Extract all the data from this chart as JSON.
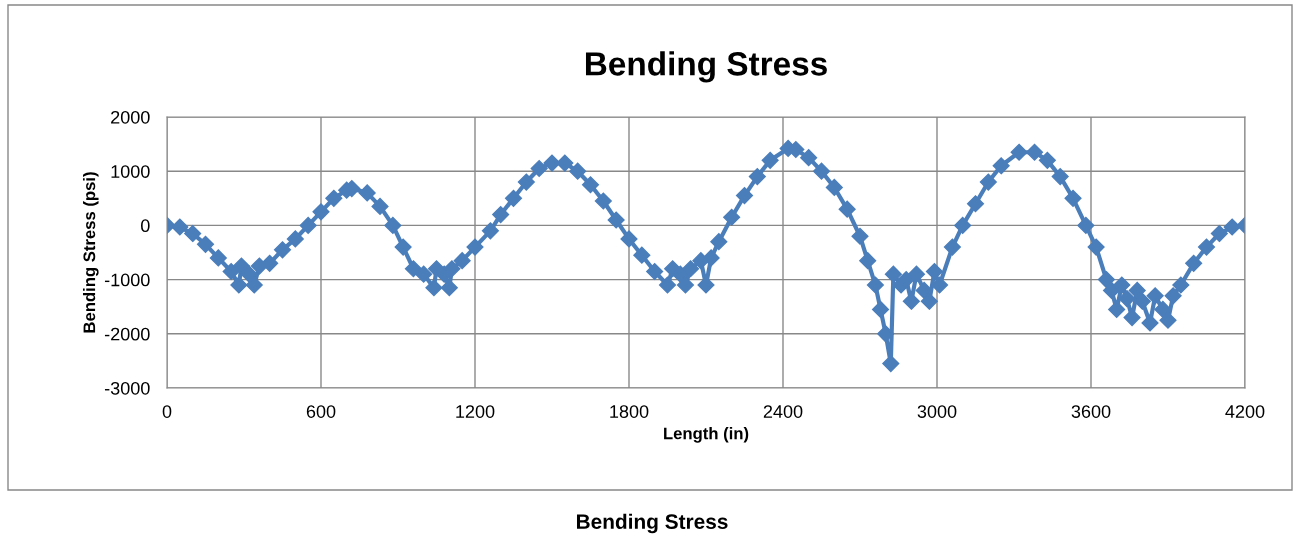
{
  "chart_data": {
    "type": "line",
    "title": "Bending Stress",
    "xlabel": "Length (in)",
    "ylabel": "Bending Stress (psi)",
    "annotations": [
      "Bending Stress"
    ],
    "x": [
      0,
      50,
      100,
      150,
      200,
      250,
      280,
      290,
      320,
      340,
      360,
      400,
      450,
      500,
      550,
      600,
      650,
      700,
      720,
      780,
      830,
      880,
      920,
      960,
      1000,
      1040,
      1050,
      1080,
      1100,
      1110,
      1150,
      1200,
      1260,
      1300,
      1350,
      1400,
      1450,
      1500,
      1550,
      1600,
      1650,
      1700,
      1750,
      1800,
      1850,
      1900,
      1950,
      1970,
      2000,
      2020,
      2040,
      2080,
      2100,
      2120,
      2150,
      2200,
      2250,
      2300,
      2350,
      2420,
      2450,
      2500,
      2550,
      2600,
      2650,
      2700,
      2730,
      2760,
      2780,
      2800,
      2820,
      2830,
      2860,
      2880,
      2900,
      2920,
      2950,
      2970,
      2990,
      3010,
      3060,
      3100,
      3150,
      3200,
      3250,
      3320,
      3380,
      3430,
      3480,
      3530,
      3580,
      3620,
      3660,
      3680,
      3700,
      3720,
      3740,
      3760,
      3780,
      3800,
      3830,
      3850,
      3880,
      3900,
      3920,
      3950,
      4000,
      4050,
      4100,
      4150,
      4200
    ],
    "series": [
      {
        "color": "#4a7ebb",
        "values": [
          0,
          -30,
          -150,
          -350,
          -600,
          -850,
          -1100,
          -750,
          -900,
          -1100,
          -750,
          -700,
          -450,
          -250,
          0,
          250,
          500,
          650,
          680,
          600,
          350,
          0,
          -400,
          -800,
          -900,
          -1150,
          -800,
          -900,
          -1150,
          -800,
          -650,
          -400,
          -100,
          200,
          500,
          800,
          1050,
          1150,
          1150,
          1000,
          750,
          450,
          100,
          -250,
          -550,
          -850,
          -1100,
          -800,
          -900,
          -1100,
          -800,
          -650,
          -1100,
          -600,
          -300,
          150,
          550,
          900,
          1200,
          1420,
          1400,
          1250,
          1000,
          700,
          300,
          -200,
          -650,
          -1100,
          -1550,
          -2000,
          -2550,
          -900,
          -1100,
          -1000,
          -1400,
          -900,
          -1200,
          -1400,
          -850,
          -1100,
          -400,
          0,
          400,
          800,
          1100,
          1350,
          1350,
          1200,
          900,
          500,
          0,
          -400,
          -1000,
          -1200,
          -1550,
          -1100,
          -1350,
          -1700,
          -1200,
          -1400,
          -1800,
          -1300,
          -1550,
          -1750,
          -1300,
          -1100,
          -700,
          -400,
          -150,
          -30,
          0
        ]
      }
    ],
    "xlim": [
      0,
      4200
    ],
    "xticks": [
      0,
      600,
      1200,
      1800,
      2400,
      3000,
      3600,
      4200
    ],
    "ylim": [
      -3000,
      2000
    ],
    "yticks": [
      -3000,
      -2000,
      -1000,
      0,
      1000,
      2000
    ],
    "grid": true,
    "marker": "diamond",
    "line_style": "solid",
    "legend": false
  }
}
